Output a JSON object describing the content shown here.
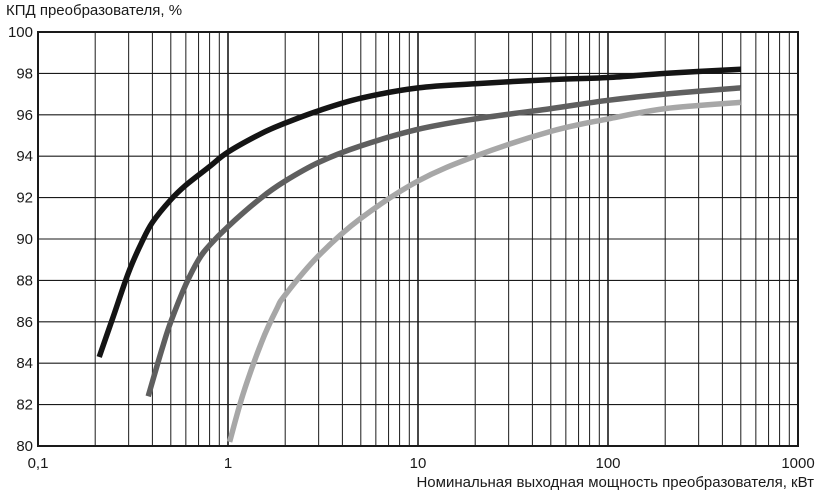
{
  "chart_data": {
    "type": "line",
    "title": "",
    "xlabel": "Номинальная выходная мощность преобразователя, кВт",
    "ylabel": "КПД преобразователя, %",
    "x_scale": "log",
    "xlim": [
      0.1,
      1000
    ],
    "ylim": [
      80,
      100
    ],
    "x_ticks": [
      0.1,
      1,
      10,
      100,
      1000
    ],
    "x_tick_labels": [
      "0,1",
      "1",
      "10",
      "100",
      "1000"
    ],
    "y_ticks": [
      80,
      82,
      84,
      86,
      88,
      90,
      92,
      94,
      96,
      98,
      100
    ],
    "y_tick_labels": [
      "80",
      "82",
      "84",
      "86",
      "88",
      "90",
      "92",
      "94",
      "96",
      "98",
      "100"
    ],
    "grid": true,
    "legend": "none",
    "series": [
      {
        "color": "#141414",
        "x": [
          0.21,
          0.25,
          0.3,
          0.35,
          0.4,
          0.5,
          0.6,
          0.8,
          1,
          1.5,
          2,
          3,
          5,
          10,
          20,
          50,
          100,
          200,
          500
        ],
        "y": [
          84.3,
          86.3,
          88.4,
          89.8,
          90.8,
          91.9,
          92.6,
          93.5,
          94.2,
          95.1,
          95.6,
          96.2,
          96.8,
          97.3,
          97.5,
          97.7,
          97.8,
          98.0,
          98.2
        ]
      },
      {
        "color": "#5f5f5f",
        "x": [
          0.38,
          0.45,
          0.5,
          0.6,
          0.7,
          0.8,
          1,
          1.5,
          2,
          3,
          5,
          10,
          20,
          50,
          100,
          200,
          500
        ],
        "y": [
          82.4,
          84.7,
          86.0,
          87.8,
          89.0,
          89.7,
          90.6,
          92.0,
          92.8,
          93.7,
          94.5,
          95.3,
          95.8,
          96.3,
          96.7,
          97.0,
          97.3
        ]
      },
      {
        "color": "#a7a7a7",
        "x": [
          1.02,
          1.2,
          1.5,
          1.8,
          2,
          3,
          5,
          10,
          20,
          50,
          100,
          200,
          500
        ],
        "y": [
          80.2,
          82.5,
          85.0,
          86.6,
          87.3,
          89.2,
          91.0,
          92.8,
          94.0,
          95.2,
          95.8,
          96.3,
          96.6
        ]
      }
    ]
  }
}
